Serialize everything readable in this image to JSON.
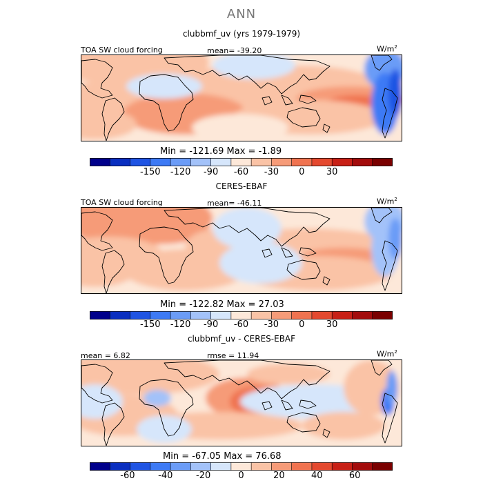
{
  "super_title": "ANN",
  "panels": [
    {
      "title": "clubbmf_uv (yrs 1979-1979)",
      "left_label": "TOA SW cloud forcing",
      "center_label": "mean= -39.20",
      "unit_base": "W/m",
      "unit_sup": "2",
      "minmax": "Min = -121.69 Max =  -1.89",
      "colorbar": {
        "colors": [
          "#00008b",
          "#0a2fc0",
          "#1f54e3",
          "#3d7af5",
          "#6b9cf7",
          "#a3c2f9",
          "#d6e6fb",
          "#fde8d9",
          "#fac3a6",
          "#f69b78",
          "#f07350",
          "#e4492f",
          "#c82016",
          "#a30c0c",
          "#7a0000"
        ],
        "tick_labels": [
          "-150",
          "-120",
          "-90",
          "-60",
          "-30",
          "0",
          "30"
        ],
        "tick_values": [
          -150,
          -120,
          -90,
          -60,
          -30,
          0,
          30
        ],
        "range": [
          -210,
          90
        ]
      }
    },
    {
      "title": "CERES-EBAF",
      "left_label": "TOA SW cloud forcing",
      "center_label": "mean= -46.11",
      "unit_base": "W/m",
      "unit_sup": "2",
      "minmax": "Min = -122.82 Max =  27.03",
      "colorbar": {
        "colors": [
          "#00008b",
          "#0a2fc0",
          "#1f54e3",
          "#3d7af5",
          "#6b9cf7",
          "#a3c2f9",
          "#d6e6fb",
          "#fde8d9",
          "#fac3a6",
          "#f69b78",
          "#f07350",
          "#e4492f",
          "#c82016",
          "#a30c0c",
          "#7a0000"
        ],
        "tick_labels": [
          "-150",
          "-120",
          "-90",
          "-60",
          "-30",
          "0",
          "30"
        ],
        "tick_values": [
          -150,
          -120,
          -90,
          -60,
          -30,
          0,
          30
        ],
        "range": [
          -210,
          90
        ]
      }
    },
    {
      "title": "clubbmf_uv - CERES-EBAF",
      "left_label": "mean =   6.82",
      "center_label": "rmse =  11.94",
      "unit_base": "W/m",
      "unit_sup": "2",
      "minmax": "Min = -67.05 Max =  76.68",
      "colorbar": {
        "colors": [
          "#00008b",
          "#0a2fc0",
          "#1f54e3",
          "#3d7af5",
          "#6b9cf7",
          "#a3c2f9",
          "#d6e6fb",
          "#fde8d9",
          "#fac3a6",
          "#f69b78",
          "#f07350",
          "#e4492f",
          "#c82016",
          "#a30c0c",
          "#7a0000"
        ],
        "tick_labels": [
          "-60",
          "-40",
          "-20",
          "0",
          "20",
          "40",
          "60"
        ],
        "tick_values": [
          -60,
          -40,
          -20,
          0,
          20,
          40,
          60
        ],
        "range": [
          -80,
          80
        ]
      }
    }
  ]
}
